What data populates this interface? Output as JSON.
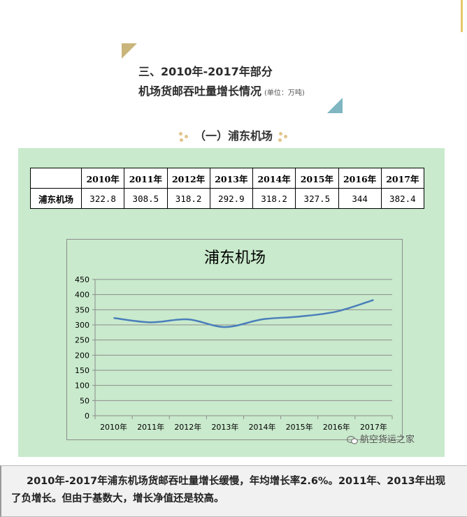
{
  "heading": {
    "line1": "三、2010年-2017年部分",
    "line2": "机场货邮吞吐量增长情况",
    "unit": "(单位：万吨)"
  },
  "section_title": "（一）浦东机场",
  "table": {
    "years": [
      "2010年",
      "2011年",
      "2012年",
      "2013年",
      "2014年",
      "2015年",
      "2016年",
      "2017年"
    ],
    "row_label": "浦东机场",
    "values": [
      "322.8",
      "308.5",
      "318.2",
      "292.9",
      "318.2",
      "327.5",
      "344",
      "382.4"
    ]
  },
  "chart_data": {
    "type": "line",
    "title": "浦东机场",
    "categories": [
      "2010年",
      "2011年",
      "2012年",
      "2013年",
      "2014年",
      "2015年",
      "2016年",
      "2017年"
    ],
    "series": [
      {
        "values": [
          322.8,
          308.5,
          318.2,
          292.9,
          318.2,
          327.5,
          344,
          382.4
        ]
      }
    ],
    "ylim": [
      0,
      450
    ],
    "yticks": [
      0,
      50,
      100,
      150,
      200,
      250,
      300,
      350,
      400,
      450
    ],
    "xlabel": "",
    "ylabel": "",
    "grid": true,
    "legend": "none",
    "line_color": "#4a7ebb"
  },
  "watermark": "航空货运之家",
  "summary": "2010年-2017年浦东机场货邮吞吐量增长缓慢，年均增长率2.6%。2011年、2013年出现了负增长。但由于基数大，增长净值还是较高。"
}
